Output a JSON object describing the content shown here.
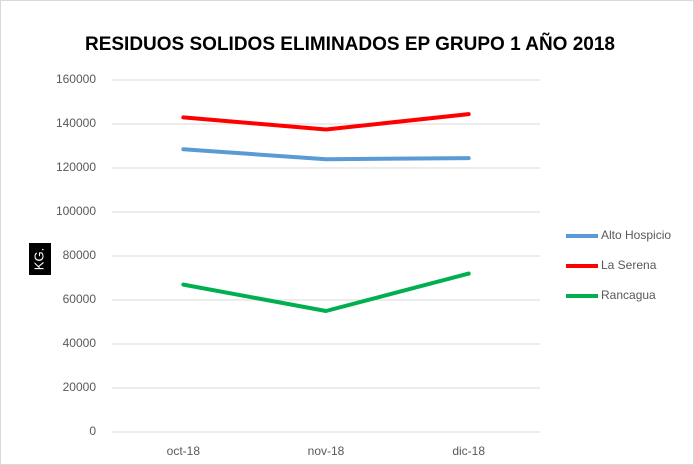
{
  "chart_data": {
    "type": "line",
    "title": "RESIDUOS SOLIDOS ELIMINADOS EP GRUPO 1 AÑO 2018",
    "y_label": "KG.",
    "categories": [
      "oct-18",
      "nov-18",
      "dic-18"
    ],
    "series": [
      {
        "name": "Alto Hospicio",
        "color": "#5b9bd5",
        "values": [
          128500,
          124000,
          124500
        ]
      },
      {
        "name": "La Serena",
        "color": "#ff0000",
        "values": [
          143000,
          137500,
          144500
        ]
      },
      {
        "name": "Rancagua",
        "color": "#00b050",
        "values": [
          67000,
          55000,
          72000
        ]
      }
    ],
    "ylim": [
      0,
      160000
    ],
    "yticks": [
      0,
      20000,
      40000,
      60000,
      80000,
      100000,
      120000,
      140000,
      160000
    ],
    "grid": true,
    "legend": "right"
  }
}
